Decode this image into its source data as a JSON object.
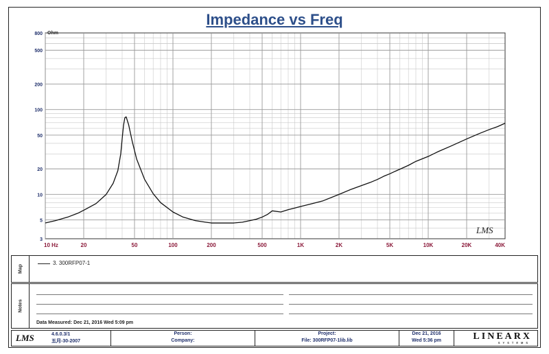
{
  "chart_data": {
    "type": "line",
    "title": "Impedance vs Freq",
    "ylabel": "Ohm",
    "xscale": "log",
    "yscale": "log",
    "xlim": [
      10,
      40000
    ],
    "ylim": [
      3,
      800
    ],
    "grid": true,
    "x_ticks": [
      10,
      20,
      50,
      100,
      200,
      500,
      1000,
      2000,
      5000,
      10000,
      20000,
      40000
    ],
    "x_tick_labels": [
      "10 Hz",
      "20",
      "50",
      "100",
      "200",
      "500",
      "1K",
      "2K",
      "5K",
      "10K",
      "20K",
      "40K"
    ],
    "y_ticks": [
      3,
      5,
      10,
      20,
      50,
      100,
      200,
      500,
      800
    ],
    "y_tick_labels": [
      "3",
      "5",
      "10",
      "20",
      "50",
      "100",
      "200",
      "500",
      "800"
    ],
    "watermark": "LMS",
    "series": [
      {
        "name": "3. 300RFP07-1",
        "color": "#111111",
        "x": [
          10,
          12,
          15,
          18,
          20,
          25,
          30,
          34,
          37,
          39,
          40,
          41,
          42,
          43,
          45,
          48,
          52,
          60,
          70,
          80,
          100,
          120,
          150,
          180,
          200,
          250,
          300,
          350,
          400,
          450,
          500,
          550,
          600,
          700,
          800,
          900,
          1000,
          1200,
          1500,
          2000,
          2500,
          3000,
          3500,
          4000,
          4500,
          5000,
          5500,
          6000,
          7000,
          8000,
          10000,
          12000,
          15000,
          20000,
          25000,
          30000,
          35000,
          40000
        ],
        "y": [
          4.6,
          4.9,
          5.4,
          6.0,
          6.5,
          7.8,
          10,
          13.5,
          19,
          30,
          45,
          65,
          80,
          82,
          66,
          42,
          26,
          15,
          10.2,
          8,
          6.2,
          5.4,
          4.9,
          4.7,
          4.6,
          4.6,
          4.6,
          4.7,
          4.9,
          5.1,
          5.4,
          5.8,
          6.4,
          6.2,
          6.6,
          6.9,
          7.2,
          7.7,
          8.4,
          10,
          11.5,
          12.7,
          13.8,
          15,
          16.4,
          17.5,
          18.7,
          19.8,
          22,
          24.5,
          28,
          32,
          37,
          45,
          52,
          58,
          63,
          69
        ]
      }
    ]
  },
  "panels": {
    "map_label": "Map",
    "notes_label": "Notes",
    "legend_entry": "3. 300RFP07-1",
    "data_measured": "Data Measured: Dec 21, 2016  Wed  5:09 pm"
  },
  "footer": {
    "logo": "LMS",
    "version": "4.6.0.3/1",
    "version_date": "五月-30-2007",
    "person_label": "Person:",
    "company_label": "Company:",
    "project_label": "Project:",
    "file_label": "File: 300RFP07-1lib.lib",
    "date": "Dec 21, 2016",
    "day_time": "Wed  5:36 pm",
    "brand": "LINEARX",
    "brand_sub": "SYSTEMS"
  }
}
